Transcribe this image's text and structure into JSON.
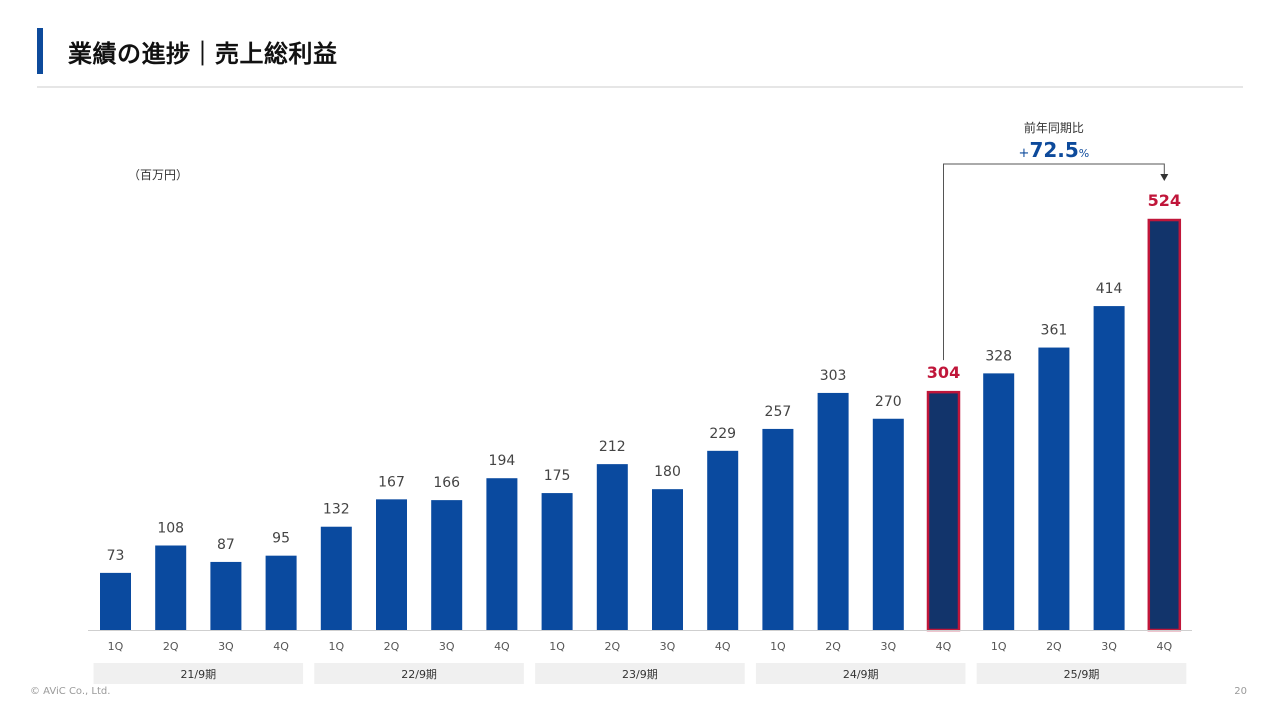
{
  "slide": {
    "title": "業績の進捗｜売上総利益",
    "unit_note": "（百万円）",
    "copyright": "© AViC Co., Ltd.",
    "page_number": "20"
  },
  "annotation": {
    "caption": "前年同期比",
    "sign": "+",
    "value": "72.5",
    "unit": "%"
  },
  "colors": {
    "bar": "#0a4a9f",
    "bar_highlight": "#12346b",
    "highlight_border": "#c0163a",
    "highlight_text": "#c0163a",
    "accent": "#0d4a9b"
  },
  "chart_data": {
    "type": "bar",
    "title": "売上総利益",
    "ylabel": "（百万円）",
    "ylim": [
      0,
      550
    ],
    "grid": false,
    "categories": [
      "1Q",
      "2Q",
      "3Q",
      "4Q",
      "1Q",
      "2Q",
      "3Q",
      "4Q",
      "1Q",
      "2Q",
      "3Q",
      "4Q",
      "1Q",
      "2Q",
      "3Q",
      "4Q",
      "1Q",
      "2Q",
      "3Q",
      "4Q"
    ],
    "values": [
      73,
      108,
      87,
      95,
      132,
      167,
      166,
      194,
      175,
      212,
      180,
      229,
      257,
      303,
      270,
      304,
      328,
      361,
      414,
      524
    ],
    "highlight_indices": [
      15,
      19
    ],
    "fiscal_years": [
      "21/9期",
      "22/9期",
      "23/9期",
      "24/9期",
      "25/9期"
    ],
    "comparison": {
      "from_index": 15,
      "to_index": 19,
      "label": "前年同期比",
      "change": "+72.5%"
    }
  }
}
